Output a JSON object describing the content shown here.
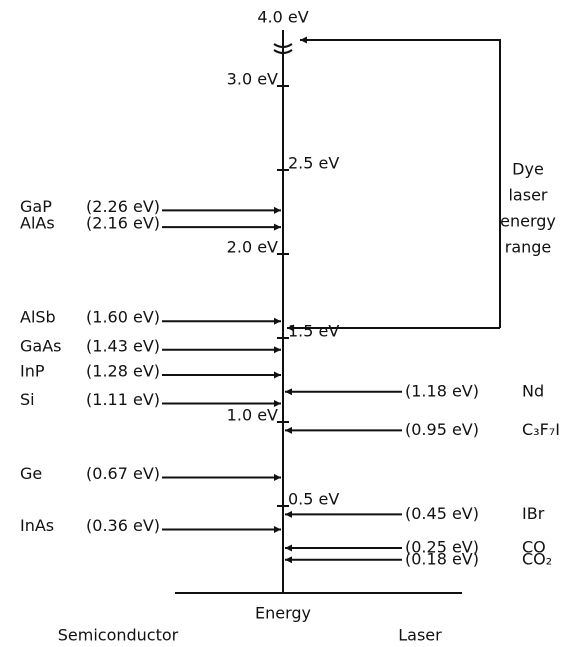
{
  "axis": {
    "top_label": "4.0 eV",
    "ticks": [
      {
        "value": 3.0,
        "label": "3.0 eV"
      },
      {
        "value": 2.5,
        "label": "2.5 eV"
      },
      {
        "value": 2.0,
        "label": "2.0 eV"
      },
      {
        "value": 1.5,
        "label": "1.5 eV"
      },
      {
        "value": 1.0,
        "label": "1.0 eV"
      },
      {
        "value": 0.5,
        "label": "0.5 eV"
      }
    ],
    "label": "Energy"
  },
  "semiconductors": {
    "title": "Semiconductor",
    "items": [
      {
        "name": "GaP",
        "energy": 2.26,
        "label": "(2.26 eV)"
      },
      {
        "name": "AlAs",
        "energy": 2.16,
        "label": "(2.16 eV)"
      },
      {
        "name": "AlSb",
        "energy": 1.6,
        "label": "(1.60 eV)"
      },
      {
        "name": "GaAs",
        "energy": 1.43,
        "label": "(1.43 eV)"
      },
      {
        "name": "InP",
        "energy": 1.28,
        "label": "(1.28 eV)"
      },
      {
        "name": "Si",
        "energy": 1.11,
        "label": "(1.11 eV)"
      },
      {
        "name": "Ge",
        "energy": 0.67,
        "label": "(0.67 eV)"
      },
      {
        "name": "InAs",
        "energy": 0.36,
        "label": "(0.36 eV)"
      }
    ]
  },
  "lasers": {
    "title": "Laser",
    "items": [
      {
        "name": "Nd",
        "energy": 1.18,
        "label": "(1.18 eV)"
      },
      {
        "name": "C₃F₇I",
        "energy": 0.95,
        "label": "(0.95 eV)"
      },
      {
        "name": "IBr",
        "energy": 0.45,
        "label": "(0.45 eV)"
      },
      {
        "name": "CO",
        "energy": 0.25,
        "label": "(0.25 eV)"
      },
      {
        "name": "CO₂",
        "energy": 0.18,
        "label": "(0.18 eV)"
      }
    ]
  },
  "dye": {
    "lines": [
      "Dye",
      "laser",
      "energy",
      "range"
    ]
  }
}
